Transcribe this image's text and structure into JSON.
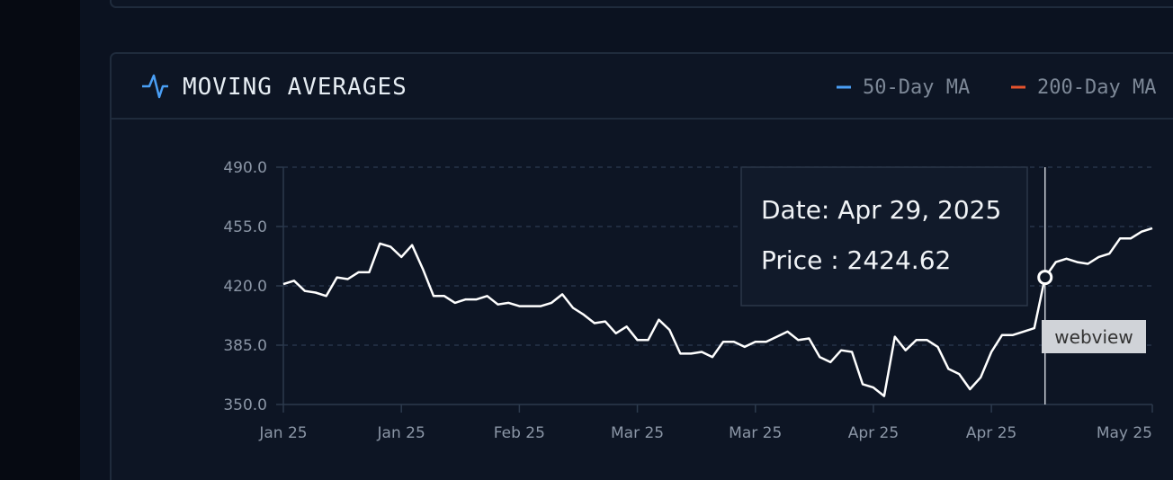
{
  "panel": {
    "title": "MOVING AVERAGES"
  },
  "chart_data": {
    "type": "line",
    "legend": [
      {
        "name": "50-Day MA",
        "color": "#4a9ff5"
      },
      {
        "name": "200-Day MA",
        "color": "#e5532d"
      }
    ],
    "categories": [
      "Jan 25",
      null,
      null,
      null,
      null,
      null,
      null,
      null,
      null,
      null,
      null,
      "Jan 25",
      null,
      null,
      null,
      null,
      null,
      null,
      null,
      null,
      null,
      null,
      "Feb 25",
      null,
      null,
      null,
      null,
      null,
      null,
      null,
      null,
      null,
      null,
      "Mar 25",
      null,
      null,
      null,
      null,
      null,
      null,
      null,
      null,
      null,
      null,
      "Mar 25",
      null,
      null,
      null,
      null,
      null,
      null,
      null,
      null,
      null,
      null,
      "Apr 25",
      null,
      null,
      null,
      null,
      null,
      null,
      null,
      null,
      null,
      null,
      "Apr 25",
      null,
      null,
      null,
      null,
      null,
      null,
      null,
      null,
      null,
      null,
      null,
      null,
      null,
      null,
      "May 25"
    ],
    "values": [
      421,
      423,
      417,
      416,
      414,
      425,
      424,
      428,
      428,
      445,
      443,
      437,
      444,
      430,
      414,
      414,
      410,
      412,
      412,
      414,
      409,
      410,
      408,
      408,
      408,
      410,
      415,
      407,
      403,
      398,
      399,
      392,
      396,
      388,
      388,
      400,
      394,
      380,
      380,
      381,
      378,
      387,
      387,
      384,
      387,
      387,
      390,
      393,
      388,
      389,
      378,
      375,
      382,
      381,
      362,
      360,
      355,
      390,
      382,
      388,
      388,
      384,
      371,
      368,
      359,
      366,
      381,
      391,
      391,
      393,
      395,
      425,
      434,
      436,
      434,
      433,
      437,
      439,
      448,
      448,
      452,
      454
    ],
    "color": "#ffffff",
    "ylim": [
      350,
      490
    ],
    "yticks": [
      {
        "value": 350,
        "label": "350.0"
      },
      {
        "value": 385,
        "label": "385.0"
      },
      {
        "value": 420,
        "label": "420.0"
      },
      {
        "value": 455,
        "label": "455.0"
      },
      {
        "value": 490,
        "label": "490.0"
      }
    ],
    "grid": true,
    "hover_index": 71,
    "tooltip": {
      "date": "Date: Apr 29, 2025",
      "price": "Price : 2424.62"
    },
    "badge": "webview"
  }
}
